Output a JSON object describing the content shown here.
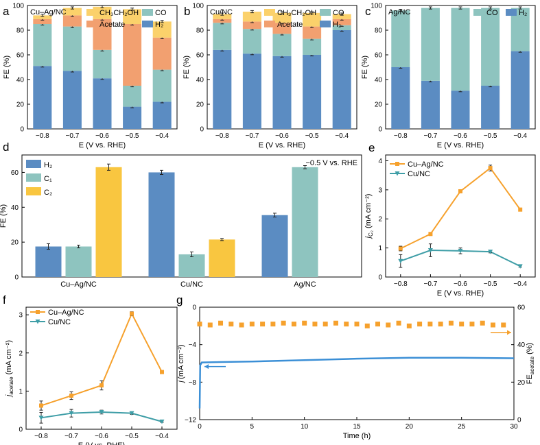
{
  "colors": {
    "H2": "#5b8cc2",
    "CO": "#8ec4bf",
    "Acetate": "#f2a070",
    "CH3CH2OH": "#fbd16b",
    "C2": "#f9c640",
    "orange": "#f6a12d",
    "teal": "#3f9ea7"
  },
  "chart_data": [
    {
      "panel": "a",
      "type": "bar",
      "stacked": true,
      "title": "Cu–Ag/NC",
      "xlabel": "E (V vs. RHE)",
      "ylabel": "FE (%)",
      "categories": [
        "−0.8",
        "−0.7",
        "−0.6",
        "−0.5",
        "−0.4"
      ],
      "ylim": [
        0,
        100
      ],
      "yticks": [
        "0",
        "20",
        "40",
        "60",
        "80",
        "100"
      ],
      "legend": [
        "CH3CH2OH",
        "CO",
        "Acetate",
        "H2"
      ],
      "legend_display": [
        "CH₃CH₂OH",
        "CO",
        "Acetate",
        "H₂"
      ],
      "series": [
        {
          "name": "H2",
          "values": [
            51,
            47,
            41,
            18,
            22
          ]
        },
        {
          "name": "CO",
          "values": [
            34,
            36,
            23,
            17,
            26
          ]
        },
        {
          "name": "Acetate",
          "values": [
            4,
            9,
            25,
            50,
            26
          ]
        },
        {
          "name": "CH3CH2OH",
          "values": [
            3,
            6,
            10,
            12,
            13
          ]
        }
      ]
    },
    {
      "panel": "b",
      "type": "bar",
      "stacked": true,
      "title": "Cu/NC",
      "xlabel": "E (V vs. RHE)",
      "ylabel": "FE (%)",
      "categories": [
        "−0.8",
        "−0.7",
        "−0.6",
        "−0.5",
        "−0.4"
      ],
      "ylim": [
        0,
        100
      ],
      "yticks": [
        "0",
        "20",
        "40",
        "60",
        "80",
        "100"
      ],
      "legend": [
        "CH3CH2OH",
        "CO",
        "Acetate",
        "H2"
      ],
      "legend_display": [
        "CH₃CH₂OH",
        "CO",
        "Acetate",
        "H₂"
      ],
      "series": [
        {
          "name": "H2",
          "values": [
            64,
            61,
            59,
            60,
            80
          ]
        },
        {
          "name": "CO",
          "values": [
            22,
            20,
            18,
            13,
            4
          ]
        },
        {
          "name": "Acetate",
          "values": [
            3,
            6,
            9,
            10,
            5
          ]
        },
        {
          "name": "CH3CH2OH",
          "values": [
            4,
            8,
            8,
            11,
            4
          ]
        }
      ]
    },
    {
      "panel": "c",
      "type": "bar",
      "stacked": true,
      "title": "Ag/NC",
      "xlabel": "E (V vs. RHE)",
      "ylabel": "FE (%)",
      "categories": [
        "−0.8",
        "−0.7",
        "−0.6",
        "−0.5",
        "−0.4"
      ],
      "ylim": [
        0,
        100
      ],
      "yticks": [
        "0",
        "20",
        "40",
        "60",
        "80",
        "100"
      ],
      "legend": [
        "CO",
        "H2"
      ],
      "legend_display": [
        "CO",
        "H₂"
      ],
      "series": [
        {
          "name": "H2",
          "values": [
            50,
            39,
            31,
            35,
            63
          ]
        },
        {
          "name": "CO",
          "values": [
            46,
            59,
            67,
            63,
            35
          ]
        }
      ]
    },
    {
      "panel": "d",
      "type": "bar",
      "grouped": true,
      "annotation": "−0.5 V vs. RHE",
      "xlabel": "",
      "ylabel": "FE (%)",
      "categories": [
        "Cu–Ag/NC",
        "Cu/NC",
        "Ag/NC"
      ],
      "ylim": [
        0,
        70
      ],
      "yticks": [
        "0",
        "20",
        "40",
        "60"
      ],
      "legend_display": [
        "H₂",
        "C₁",
        "C₂"
      ],
      "series": [
        {
          "name": "H2",
          "values": [
            17.5,
            60,
            35.5
          ]
        },
        {
          "name": "C1",
          "values": [
            17.5,
            13,
            63
          ]
        },
        {
          "name": "C2",
          "values": [
            63,
            21.5,
            null
          ]
        }
      ]
    },
    {
      "panel": "e",
      "type": "line",
      "xlabel": "E (V vs. RHE)",
      "ylabel": "jC2 (mA cm−2)",
      "ylabel_display": "j",
      "ylabel_sub": "C₂",
      "ylabel_rest": " (mA cm⁻²)",
      "x": [
        -0.8,
        -0.7,
        -0.6,
        -0.5,
        -0.4
      ],
      "xticks": [
        "−0.8",
        "−0.7",
        "−0.6",
        "−0.5",
        "−0.4"
      ],
      "ylim": [
        0,
        4.2
      ],
      "yticks": [
        "0",
        "1",
        "2",
        "3",
        "4"
      ],
      "series": [
        {
          "name": "Cu–Ag/NC",
          "values": [
            0.98,
            1.48,
            2.95,
            3.75,
            2.32
          ]
        },
        {
          "name": "Cu/NC",
          "values": [
            0.55,
            0.92,
            0.9,
            0.87,
            0.37
          ]
        }
      ]
    },
    {
      "panel": "f",
      "type": "line",
      "xlabel": "E (V vs. RHE)",
      "ylabel": "jacetate (mA cm−2)",
      "ylabel_display": "j",
      "ylabel_sub": "acetate",
      "ylabel_rest": " (mA cm⁻²)",
      "x": [
        -0.8,
        -0.7,
        -0.6,
        -0.5,
        -0.4
      ],
      "xticks": [
        "−0.8",
        "−0.7",
        "−0.6",
        "−0.5",
        "−0.4"
      ],
      "ylim": [
        0,
        3.2
      ],
      "yticks": [
        "0",
        "1",
        "2",
        "3"
      ],
      "series": [
        {
          "name": "Cu–Ag/NC",
          "values": [
            0.62,
            0.88,
            1.15,
            3.03,
            1.5
          ]
        },
        {
          "name": "Cu/NC",
          "values": [
            0.3,
            0.42,
            0.45,
            0.42,
            0.2
          ]
        }
      ]
    },
    {
      "panel": "g",
      "type": "line+scatter",
      "xlabel": "Time (h)",
      "ylabel": "j (mA cm−2)",
      "ylabel2": "FEacetate (%)",
      "ylabel_display": "j",
      "ylabel_rest": " (mA cm⁻²)",
      "ylabel2_main": "FE",
      "ylabel2_sub": "acetate",
      "ylabel2_rest": " (%)",
      "xlim": [
        0,
        30
      ],
      "xticks": [
        "0",
        "5",
        "10",
        "15",
        "20",
        "25",
        "30"
      ],
      "ylim_left": [
        -12,
        0
      ],
      "yticks_left": [
        "0",
        "−4",
        "−8",
        "−12"
      ],
      "ylim_right": [
        0,
        60
      ],
      "yticks_right": [
        "0",
        "20",
        "40",
        "60"
      ],
      "current": {
        "time": [
          0,
          0.05,
          0.2,
          2,
          5,
          10,
          15,
          20,
          25,
          30
        ],
        "values": [
          -10.8,
          -6.2,
          -5.9,
          -5.85,
          -5.8,
          -5.65,
          -5.5,
          -5.4,
          -5.4,
          -5.45
        ]
      },
      "fe_acetate": {
        "time": [
          0,
          1,
          2,
          3,
          4,
          5,
          6,
          7,
          8,
          9,
          10,
          11,
          12,
          13,
          14,
          15,
          16,
          17,
          18,
          19,
          20,
          21,
          22,
          23,
          24,
          25,
          26,
          27,
          28,
          29
        ],
        "values": [
          51,
          50.5,
          51.5,
          51,
          50.5,
          51,
          51,
          51,
          51.5,
          51,
          51.5,
          51,
          51,
          51.5,
          51,
          51,
          50,
          51,
          50.5,
          51.5,
          50,
          51,
          51,
          51,
          51.5,
          51,
          51,
          51.5,
          50.5,
          50.5
        ]
      }
    }
  ],
  "panel_labels": [
    "a",
    "b",
    "c",
    "d",
    "e",
    "f",
    "g"
  ]
}
